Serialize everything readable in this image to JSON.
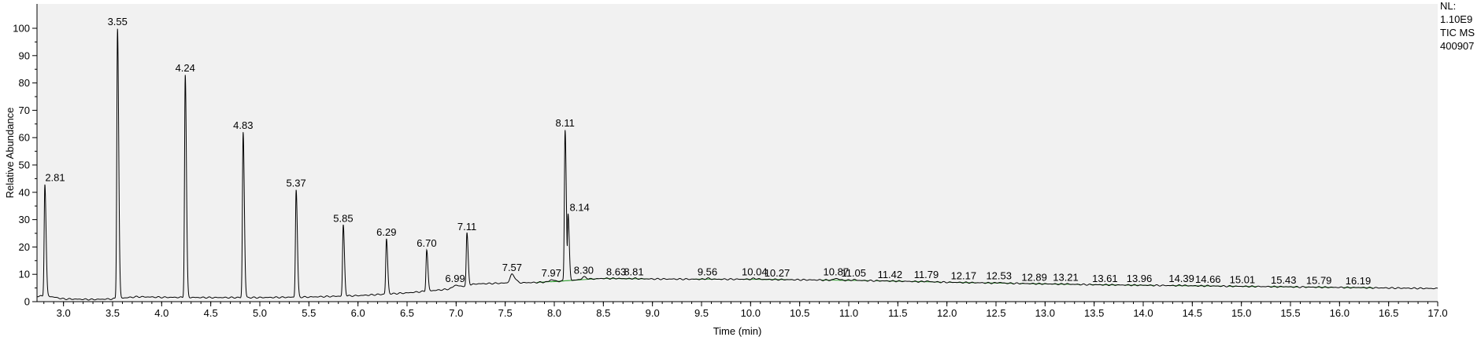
{
  "chart_data": {
    "type": "line",
    "title": "",
    "xlabel": "Time (min)",
    "ylabel": "Relative Abundance",
    "xlim": [
      2.73,
      17.0
    ],
    "ylim": [
      0,
      100
    ],
    "x_ticks": [
      "3.0",
      "3.5",
      "4.0",
      "4.5",
      "5.0",
      "5.5",
      "6.0",
      "6.5",
      "7.0",
      "7.5",
      "8.0",
      "8.5",
      "9.0",
      "9.5",
      "10.0",
      "10.5",
      "11.0",
      "11.5",
      "12.0",
      "12.5",
      "13.0",
      "13.5",
      "14.0",
      "14.5",
      "15.0",
      "15.5",
      "16.0",
      "16.5",
      "17.0"
    ],
    "y_ticks": [
      "0",
      "10",
      "20",
      "30",
      "40",
      "50",
      "60",
      "70",
      "80",
      "90",
      "100"
    ],
    "grid": false,
    "info": [
      "NL:",
      "1.10E9",
      "TIC  MS",
      "400907"
    ],
    "peaks": [
      {
        "label": "2.81",
        "x": 2.81,
        "y": 43
      },
      {
        "label": "3.55",
        "x": 3.55,
        "y": 100
      },
      {
        "label": "4.24",
        "x": 4.24,
        "y": 83
      },
      {
        "label": "4.83",
        "x": 4.83,
        "y": 62
      },
      {
        "label": "5.37",
        "x": 5.37,
        "y": 41
      },
      {
        "label": "5.85",
        "x": 5.85,
        "y": 28
      },
      {
        "label": "6.29",
        "x": 6.29,
        "y": 23
      },
      {
        "label": "6.70",
        "x": 6.7,
        "y": 19
      },
      {
        "label": "6.99",
        "x": 6.99,
        "y": 6
      },
      {
        "label": "7.11",
        "x": 7.11,
        "y": 25
      },
      {
        "label": "7.57",
        "x": 7.57,
        "y": 10
      },
      {
        "label": "7.97",
        "x": 7.97,
        "y": 8
      },
      {
        "label": "8.11",
        "x": 8.11,
        "y": 63
      },
      {
        "label": "8.14",
        "x": 8.14,
        "y": 32
      },
      {
        "label": "8.30",
        "x": 8.3,
        "y": 9
      },
      {
        "label": "8.63",
        "x": 8.63,
        "y": 8.5
      },
      {
        "label": "8.81",
        "x": 8.81,
        "y": 8.5
      },
      {
        "label": "9.56",
        "x": 9.56,
        "y": 8.5
      },
      {
        "label": "10.04",
        "x": 10.04,
        "y": 8.5
      },
      {
        "label": "10.27",
        "x": 10.27,
        "y": 8
      },
      {
        "label": "10.87",
        "x": 10.87,
        "y": 8.5
      },
      {
        "label": "11.05",
        "x": 11.05,
        "y": 8
      },
      {
        "label": "11.42",
        "x": 11.42,
        "y": 7.5
      },
      {
        "label": "11.79",
        "x": 11.79,
        "y": 7.5
      },
      {
        "label": "12.17",
        "x": 12.17,
        "y": 7
      },
      {
        "label": "12.53",
        "x": 12.53,
        "y": 7
      },
      {
        "label": "12.89",
        "x": 12.89,
        "y": 6.5
      },
      {
        "label": "13.21",
        "x": 13.21,
        "y": 6.5
      },
      {
        "label": "13.61",
        "x": 13.61,
        "y": 6
      },
      {
        "label": "13.96",
        "x": 13.96,
        "y": 6
      },
      {
        "label": "14.39",
        "x": 14.39,
        "y": 6
      },
      {
        "label": "14.66",
        "x": 14.66,
        "y": 5.8
      },
      {
        "label": "15.01",
        "x": 15.01,
        "y": 5.6
      },
      {
        "label": "15.43",
        "x": 15.43,
        "y": 5.5
      },
      {
        "label": "15.79",
        "x": 15.79,
        "y": 5.3
      },
      {
        "label": "16.19",
        "x": 16.19,
        "y": 5.2
      }
    ],
    "baseline": [
      [
        2.73,
        2
      ],
      [
        2.85,
        2
      ],
      [
        3.0,
        1
      ],
      [
        3.3,
        0.8
      ],
      [
        3.5,
        1
      ],
      [
        3.75,
        1.8
      ],
      [
        4.0,
        1.6
      ],
      [
        4.5,
        1.5
      ],
      [
        5.0,
        1.5
      ],
      [
        5.5,
        1.7
      ],
      [
        6.0,
        2.2
      ],
      [
        6.5,
        3.2
      ],
      [
        6.9,
        4.5
      ],
      [
        7.05,
        5.5
      ],
      [
        7.2,
        6.5
      ],
      [
        7.5,
        6.8
      ],
      [
        7.8,
        7
      ],
      [
        8.0,
        7.3
      ],
      [
        8.25,
        8
      ],
      [
        8.5,
        8.5
      ],
      [
        9.0,
        8.3
      ],
      [
        9.5,
        8.2
      ],
      [
        10.0,
        8.2
      ],
      [
        10.5,
        8
      ],
      [
        11.0,
        7.8
      ],
      [
        11.5,
        7.5
      ],
      [
        12.0,
        7.1
      ],
      [
        12.5,
        6.8
      ],
      [
        13.0,
        6.5
      ],
      [
        13.5,
        6.2
      ],
      [
        14.0,
        6
      ],
      [
        14.5,
        5.8
      ],
      [
        15.0,
        5.6
      ],
      [
        15.5,
        5.4
      ],
      [
        16.0,
        5.2
      ],
      [
        16.5,
        5
      ],
      [
        17.0,
        4.8
      ]
    ]
  }
}
